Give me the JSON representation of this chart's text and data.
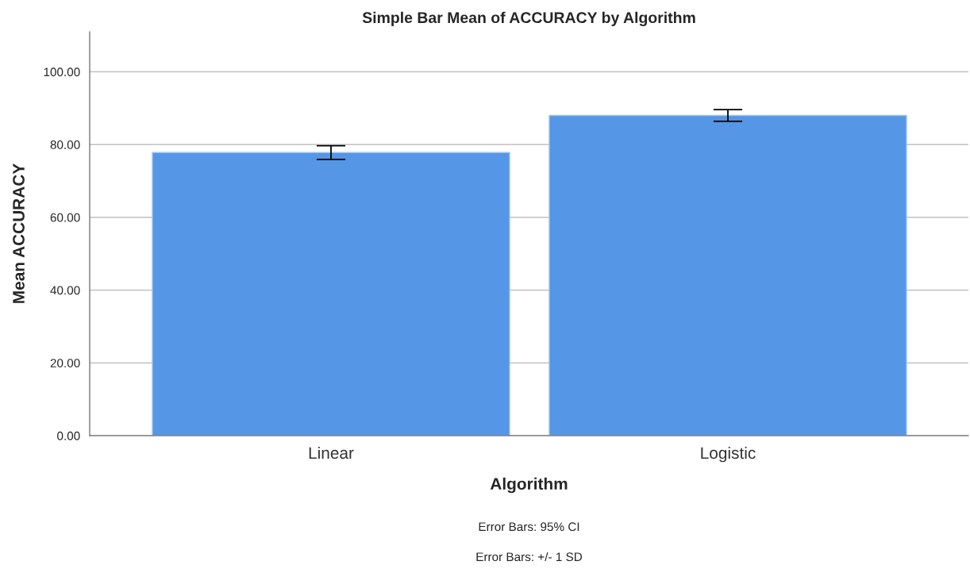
{
  "chart_data": {
    "type": "bar",
    "title": "Simple Bar Mean of ACCURACY by Algorithm",
    "xlabel": "Algorithm",
    "ylabel": "Mean ACCURACY",
    "categories": [
      "Linear",
      "Logistic"
    ],
    "values": [
      77.8,
      88.0
    ],
    "errors": [
      1.9,
      1.6
    ],
    "color": "#5596e6",
    "ylim": [
      0,
      111
    ],
    "yticks": [
      {
        "value": 0,
        "label": "0.00"
      },
      {
        "value": 20,
        "label": "20.00"
      },
      {
        "value": 40,
        "label": "40.00"
      },
      {
        "value": 60,
        "label": "60.00"
      },
      {
        "value": 80,
        "label": "80.00"
      },
      {
        "value": 100,
        "label": "100.00"
      }
    ],
    "grid": "y",
    "legend": false,
    "annotations": [
      "Error Bars: 95% CI",
      "Error Bars: +/- 1 SD"
    ]
  }
}
